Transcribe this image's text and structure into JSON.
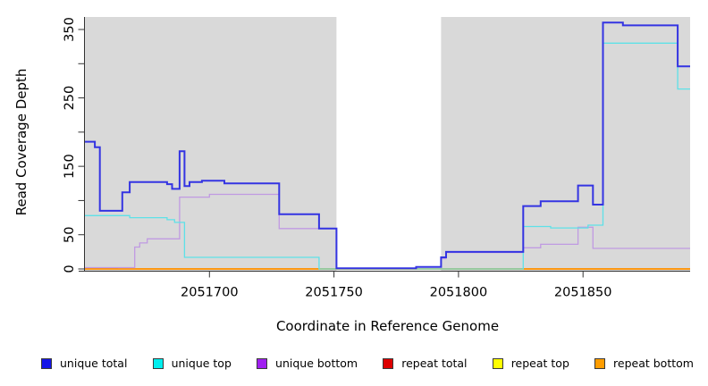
{
  "chart_data": {
    "type": "line",
    "step": "after",
    "title": "",
    "xlabel": "Coordinate in Reference Genome",
    "ylabel": "Read Coverage Depth",
    "xlim": [
      2051650,
      2051893
    ],
    "ylim": [
      0,
      365
    ],
    "grid": false,
    "plot_bg_color": "#d9d9d9",
    "gap_region": {
      "from": 2051751,
      "to": 2051793,
      "color": "#ffffff"
    },
    "axis_color": "#333333",
    "x_ticks": [
      {
        "value": 2051700,
        "label": "2051700"
      },
      {
        "value": 2051750,
        "label": "2051750"
      },
      {
        "value": 2051800,
        "label": "2051800"
      },
      {
        "value": 2051850,
        "label": "2051850"
      }
    ],
    "y_ticks": [
      {
        "value": 0,
        "label": "0"
      },
      {
        "value": 50,
        "label": "50"
      },
      {
        "value": 100,
        "label": ""
      },
      {
        "value": 150,
        "label": "150"
      },
      {
        "value": 200,
        "label": ""
      },
      {
        "value": 250,
        "label": "250"
      },
      {
        "value": 300,
        "label": ""
      },
      {
        "value": 350,
        "label": "350"
      }
    ],
    "legend_position": "bottom",
    "series": [
      {
        "name": "repeat total",
        "color": "#dd0000",
        "line_color": "#cc5566",
        "width": 1.3,
        "points": [
          [
            2051650,
            1
          ],
          [
            2051663,
            0
          ]
        ]
      },
      {
        "name": "repeat top",
        "color": "#ffff00",
        "line_color": "#f5e400",
        "width": 1.3,
        "points": [
          [
            2051650,
            0
          ]
        ]
      },
      {
        "name": "repeat bottom",
        "color": "#ff9d00",
        "line_color": "#ff9100",
        "width": 1.8,
        "points": [
          [
            2051650,
            0
          ]
        ]
      },
      {
        "name": "unique bottom",
        "color": "#a020f0",
        "line_color": "#c09ae2",
        "width": 1.3,
        "points": [
          [
            2051650,
            2
          ],
          [
            2051670,
            32
          ],
          [
            2051672,
            38
          ],
          [
            2051675,
            44
          ],
          [
            2051688,
            105
          ],
          [
            2051700,
            109
          ],
          [
            2051728,
            59
          ],
          [
            2051751,
            1
          ],
          [
            2051783,
            3
          ],
          [
            2051793,
            15
          ],
          [
            2051795,
            24
          ],
          [
            2051826,
            31
          ],
          [
            2051833,
            36
          ],
          [
            2051848,
            61
          ],
          [
            2051854,
            30
          ]
        ]
      },
      {
        "name": "unique top",
        "color": "#00eeee",
        "line_color": "#5ee1e8",
        "width": 1.3,
        "points": [
          [
            2051650,
            78
          ],
          [
            2051668,
            75
          ],
          [
            2051683,
            72
          ],
          [
            2051686,
            68
          ],
          [
            2051690,
            17
          ],
          [
            2051744,
            0
          ],
          [
            2051826,
            62
          ],
          [
            2051837,
            60
          ],
          [
            2051852,
            64
          ],
          [
            2051858,
            330
          ],
          [
            2051888,
            263
          ]
        ]
      },
      {
        "name": "unique total",
        "color": "#1515e8",
        "line_color": "#3434e2",
        "width": 2,
        "points": [
          [
            2051650,
            186
          ],
          [
            2051654,
            178
          ],
          [
            2051656,
            85
          ],
          [
            2051665,
            112
          ],
          [
            2051668,
            127
          ],
          [
            2051683,
            124
          ],
          [
            2051685,
            117
          ],
          [
            2051688,
            172
          ],
          [
            2051690,
            121
          ],
          [
            2051692,
            127
          ],
          [
            2051697,
            129
          ],
          [
            2051706,
            125
          ],
          [
            2051728,
            80
          ],
          [
            2051744,
            59
          ],
          [
            2051751,
            1
          ],
          [
            2051783,
            3
          ],
          [
            2051793,
            17
          ],
          [
            2051795,
            25
          ],
          [
            2051826,
            92
          ],
          [
            2051833,
            99
          ],
          [
            2051848,
            122
          ],
          [
            2051854,
            94
          ],
          [
            2051858,
            360
          ],
          [
            2051866,
            356
          ],
          [
            2051888,
            296
          ]
        ]
      }
    ],
    "legend": [
      {
        "label": "unique total",
        "color": "#1515e8"
      },
      {
        "label": "unique top",
        "color": "#00eeee"
      },
      {
        "label": "unique bottom",
        "color": "#a020f0"
      },
      {
        "label": "repeat total",
        "color": "#dd0000"
      },
      {
        "label": "repeat top",
        "color": "#ffff00"
      },
      {
        "label": "repeat bottom",
        "color": "#ff9d00"
      }
    ]
  }
}
